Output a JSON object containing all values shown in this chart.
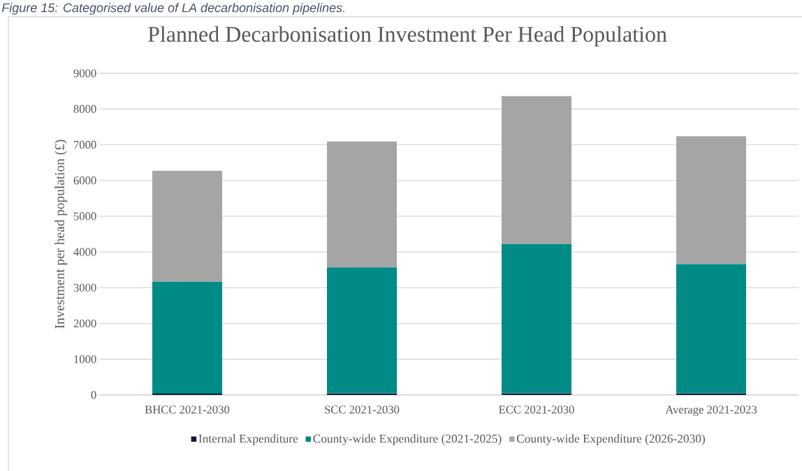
{
  "chart_data": {
    "type": "bar",
    "stacked": true,
    "title": "Planned Decarbonisation Investment Per Head Population",
    "ylabel": "Investment per head population (£)",
    "annotations": [
      "Figure 15: Categorised value of LA decarbonisation pipelines."
    ],
    "categories": [
      "BHCC 2021-2030",
      "SCC 2021-2030",
      "ECC 2021-2030",
      "Average 2021-2023"
    ],
    "series": [
      {
        "name": "Internal Expenditure",
        "color": "#0c1a3c",
        "values": [
          40,
          50,
          50,
          50
        ]
      },
      {
        "name": "County-wide Expenditure (2021-2025)",
        "color": "#008b87",
        "values": [
          3130,
          3520,
          4170,
          3610
        ]
      },
      {
        "name": "County-wide Expenditure (2026-2030)",
        "color": "#a5a5a5",
        "values": [
          3100,
          3520,
          4140,
          3580
        ]
      }
    ],
    "ylim": [
      0,
      9000
    ],
    "yticks": [
      0,
      1000,
      2000,
      3000,
      4000,
      5000,
      6000,
      7000,
      8000,
      9000
    ],
    "grid": "y",
    "legend": "bottom"
  }
}
